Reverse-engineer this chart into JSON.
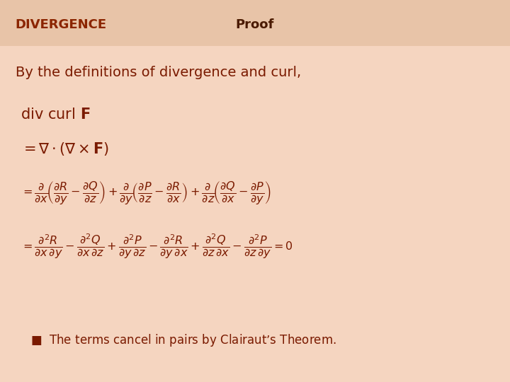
{
  "bg_color": "#f5d5c0",
  "header_color": "#e8c4a8",
  "title_left": "DIVERGENCE",
  "title_left_color": "#8B2500",
  "title_right": "Proof",
  "title_right_color": "#4a1a00",
  "text_color": "#7a1a00",
  "bullet_text": "The terms cancel in pairs by Clairaut’s Theorem.",
  "intro_text": "By the definitions of divergence and curl,",
  "figsize": [
    7.2,
    5.4
  ],
  "dpi": 100
}
